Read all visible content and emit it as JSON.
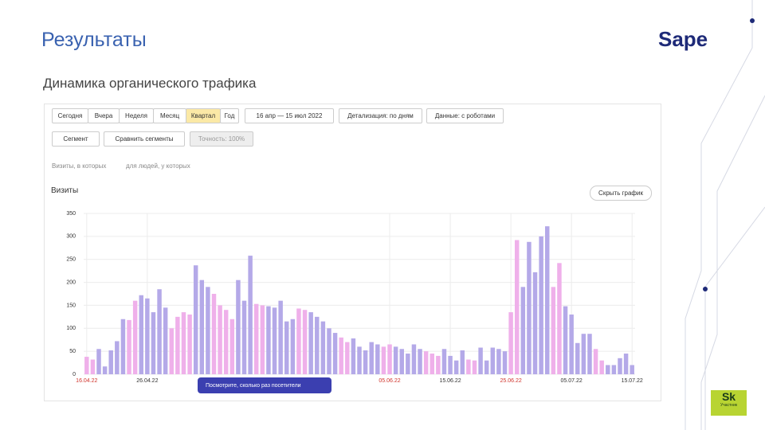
{
  "slide": {
    "title": "Результаты",
    "subtitle": "Динамика органического трафика",
    "logo": "Sape",
    "badge": "Sk",
    "badge_caption": "Участник"
  },
  "toolbar": {
    "periods": [
      "Сегодня",
      "Вчера",
      "Неделя",
      "Месяц",
      "Квартал",
      "Год"
    ],
    "active_period": "Квартал",
    "date_range": "16 апр — 15 июл 2022",
    "detail": "Детализация: по дням",
    "data_mode": "Данные: с роботами",
    "segment": "Сегмент",
    "compare": "Сравнить сегменты",
    "accuracy": "Точность: 100%",
    "visits_filter": "Визиты, в которых",
    "people_filter": "для людей, у которых",
    "hide_chart": "Скрыть график",
    "popup": "Посмотрите, сколько раз посетители"
  },
  "chart_data": {
    "type": "bar",
    "title": "Визиты",
    "categories": [
      "16.04.22",
      null,
      null,
      null,
      null,
      null,
      null,
      null,
      null,
      null,
      "26.04.22",
      null,
      null,
      null,
      null,
      null,
      null,
      null,
      null,
      null,
      null,
      null,
      null,
      null,
      null,
      null,
      null,
      null,
      null,
      null,
      null,
      null,
      null,
      null,
      null,
      null,
      null,
      null,
      null,
      null,
      null,
      null,
      null,
      null,
      null,
      null,
      null,
      null,
      null,
      null,
      "05.06.22",
      null,
      null,
      null,
      null,
      null,
      null,
      null,
      null,
      null,
      "15.06.22",
      null,
      null,
      null,
      null,
      null,
      null,
      null,
      null,
      null,
      "25.06.22",
      null,
      null,
      null,
      null,
      null,
      null,
      null,
      null,
      null,
      "05.07.22",
      null,
      null,
      null,
      null,
      null,
      null,
      null,
      null,
      null,
      "15.07.22"
    ],
    "values": [
      38,
      32,
      55,
      17,
      52,
      72,
      120,
      118,
      160,
      172,
      165,
      135,
      185,
      145,
      100,
      125,
      135,
      130,
      237,
      205,
      190,
      175,
      150,
      140,
      120,
      205,
      160,
      258,
      153,
      150,
      148,
      145,
      160,
      115,
      120,
      143,
      140,
      135,
      125,
      115,
      100,
      90,
      80,
      70,
      78,
      60,
      52,
      70,
      65,
      60,
      65,
      60,
      55,
      45,
      65,
      55,
      50,
      45,
      40,
      55,
      40,
      30,
      52,
      32,
      30,
      58,
      30,
      58,
      55,
      50,
      135,
      292,
      190,
      288,
      222,
      300,
      322,
      190,
      242,
      148,
      130,
      68,
      88,
      88,
      55,
      30,
      20,
      20,
      35,
      45,
      20
    ],
    "colors": [
      "#efb0ea",
      "#efb0ea",
      "#b4a9e8",
      "#b4a9e8",
      "#b4a9e8",
      "#b4a9e8",
      "#b4a9e8",
      "#efb0ea",
      "#efb0ea",
      "#b4a9e8",
      "#b4a9e8",
      "#b4a9e8",
      "#b4a9e8",
      "#b4a9e8",
      "#efb0ea",
      "#efb0ea",
      "#efb0ea",
      "#efb0ea",
      "#b4a9e8",
      "#b4a9e8",
      "#b4a9e8",
      "#efb0ea",
      "#efb0ea",
      "#efb0ea",
      "#efb0ea",
      "#b4a9e8",
      "#b4a9e8",
      "#b4a9e8",
      "#efb0ea",
      "#efb0ea",
      "#b4a9e8",
      "#b4a9e8",
      "#b4a9e8",
      "#b4a9e8",
      "#b4a9e8",
      "#efb0ea",
      "#efb0ea",
      "#b4a9e8",
      "#b4a9e8",
      "#b4a9e8",
      "#b4a9e8",
      "#b4a9e8",
      "#efb0ea",
      "#efb0ea",
      "#b4a9e8",
      "#b4a9e8",
      "#b4a9e8",
      "#b4a9e8",
      "#b4a9e8",
      "#efb0ea",
      "#efb0ea",
      "#b4a9e8",
      "#b4a9e8",
      "#b4a9e8",
      "#b4a9e8",
      "#b4a9e8",
      "#efb0ea",
      "#efb0ea",
      "#efb0ea",
      "#b4a9e8",
      "#b4a9e8",
      "#b4a9e8",
      "#b4a9e8",
      "#efb0ea",
      "#efb0ea",
      "#b4a9e8",
      "#b4a9e8",
      "#b4a9e8",
      "#b4a9e8",
      "#b4a9e8",
      "#efb0ea",
      "#efb0ea",
      "#b4a9e8",
      "#b4a9e8",
      "#b4a9e8",
      "#b4a9e8",
      "#b4a9e8",
      "#efb0ea",
      "#efb0ea",
      "#b4a9e8",
      "#b4a9e8",
      "#b4a9e8",
      "#b4a9e8",
      "#b4a9e8",
      "#efb0ea",
      "#efb0ea",
      "#b4a9e8",
      "#b4a9e8",
      "#b4a9e8",
      "#b4a9e8",
      "#b4a9e8"
    ],
    "weekend_label_color": "#d0342c",
    "label_color": "#333333",
    "ylim": [
      0,
      350
    ],
    "yticks": [
      0,
      50,
      100,
      150,
      200,
      250,
      300,
      350
    ],
    "grid": true
  }
}
